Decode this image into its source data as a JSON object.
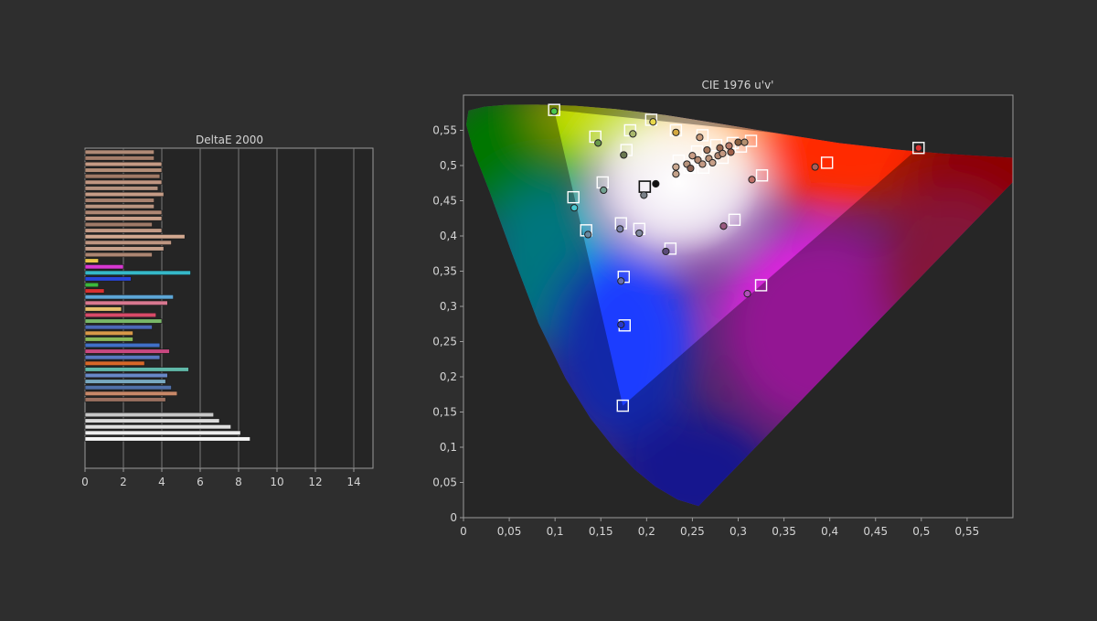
{
  "chart_data": [
    {
      "type": "bar",
      "orientation": "horizontal",
      "title": "DeltaE 2000",
      "xlabel": "",
      "ylabel": "",
      "xlim": [
        0,
        15
      ],
      "xticks": [
        "0",
        "2",
        "4",
        "6",
        "8",
        "10",
        "12",
        "14"
      ],
      "grid": true,
      "values": [
        3.6,
        3.6,
        4.0,
        4.0,
        3.9,
        4.0,
        3.8,
        4.1,
        3.6,
        3.6,
        4.0,
        4.0,
        3.5,
        4.0,
        5.2,
        4.5,
        4.1,
        3.5,
        0.7,
        2.0,
        5.5,
        2.4,
        0.7,
        1.0,
        4.6,
        4.3,
        1.9,
        3.7,
        4.0,
        3.5,
        2.5,
        2.5,
        3.9,
        4.4,
        3.9,
        3.1,
        5.4,
        4.3,
        4.2,
        4.5,
        4.8,
        4.2,
        6.7,
        7.0,
        7.6,
        8.1,
        8.6
      ],
      "colors": [
        "#b08a76",
        "#a47d6a",
        "#c49a84",
        "#b48e78",
        "#a07a66",
        "#c09682",
        "#b4917e",
        "#c59c86",
        "#a88270",
        "#b99480",
        "#ae8774",
        "#caa08a",
        "#9f7a68",
        "#c29a85",
        "#d2a890",
        "#bd9581",
        "#c6a08c",
        "#ad8672",
        "#e8c64a",
        "#d838d2",
        "#35b8c8",
        "#2845d8",
        "#3cb83c",
        "#d83030",
        "#5da6d6",
        "#d87890",
        "#e6c06c",
        "#d84a68",
        "#78b868",
        "#4c68b8",
        "#d89848",
        "#88b858",
        "#4070c8",
        "#c84880",
        "#5878c0",
        "#d86828",
        "#60b8a8",
        "#6888c8",
        "#78a8c0",
        "#5070a8",
        "#c88868",
        "#9a7060",
        "#c8c8c8",
        "#dadada",
        "#e0e0e0",
        "#ececec",
        "#f6f6f6"
      ]
    },
    {
      "type": "scatter",
      "title": "CIE 1976 u'v'",
      "xlabel": "",
      "ylabel": "",
      "xlim": [
        0,
        0.6
      ],
      "ylim": [
        0,
        0.6
      ],
      "xticks": [
        "0",
        "0,05",
        "0,1",
        "0,15",
        "0,2",
        "0,25",
        "0,3",
        "0,35",
        "0,4",
        "0,45",
        "0,5",
        "0,55"
      ],
      "yticks": [
        "0",
        "0,05",
        "0,1",
        "0,15",
        "0,2",
        "0,25",
        "0,3",
        "0,35",
        "0,4",
        "0,45",
        "0,5",
        "0,55"
      ],
      "grid": false,
      "gamut_triangle": {
        "red": [
          0.497,
          0.525
        ],
        "green": [
          0.099,
          0.579
        ],
        "blue": [
          0.174,
          0.159
        ]
      },
      "targets": [
        {
          "u": 0.099,
          "v": 0.579
        },
        {
          "u": 0.205,
          "v": 0.565
        },
        {
          "u": 0.144,
          "v": 0.541
        },
        {
          "u": 0.182,
          "v": 0.55
        },
        {
          "u": 0.232,
          "v": 0.55
        },
        {
          "u": 0.178,
          "v": 0.522
        },
        {
          "u": 0.261,
          "v": 0.543
        },
        {
          "u": 0.294,
          "v": 0.532
        },
        {
          "u": 0.314,
          "v": 0.535
        },
        {
          "u": 0.497,
          "v": 0.525
        },
        {
          "u": 0.397,
          "v": 0.504
        },
        {
          "u": 0.326,
          "v": 0.486
        },
        {
          "u": 0.152,
          "v": 0.476
        },
        {
          "u": 0.198,
          "v": 0.47
        },
        {
          "u": 0.12,
          "v": 0.455
        },
        {
          "u": 0.134,
          "v": 0.408
        },
        {
          "u": 0.172,
          "v": 0.418
        },
        {
          "u": 0.192,
          "v": 0.41
        },
        {
          "u": 0.296,
          "v": 0.423
        },
        {
          "u": 0.226,
          "v": 0.382
        },
        {
          "u": 0.175,
          "v": 0.342
        },
        {
          "u": 0.325,
          "v": 0.33
        },
        {
          "u": 0.176,
          "v": 0.273
        },
        {
          "u": 0.174,
          "v": 0.159
        },
        {
          "u": 0.235,
          "v": 0.507
        },
        {
          "u": 0.255,
          "v": 0.52
        },
        {
          "u": 0.262,
          "v": 0.497
        },
        {
          "u": 0.276,
          "v": 0.529
        },
        {
          "u": 0.283,
          "v": 0.511
        },
        {
          "u": 0.247,
          "v": 0.497
        },
        {
          "u": 0.303,
          "v": 0.527
        }
      ],
      "measured": [
        {
          "u": 0.099,
          "v": 0.577,
          "color": "#4cc84c"
        },
        {
          "u": 0.207,
          "v": 0.562,
          "color": "#e8d84c"
        },
        {
          "u": 0.147,
          "v": 0.532,
          "color": "#6a9a4a"
        },
        {
          "u": 0.185,
          "v": 0.545,
          "color": "#a8b86c"
        },
        {
          "u": 0.232,
          "v": 0.547,
          "color": "#d4a840"
        },
        {
          "u": 0.175,
          "v": 0.515,
          "color": "#6a7850"
        },
        {
          "u": 0.258,
          "v": 0.54,
          "color": "#c89a7a"
        },
        {
          "u": 0.29,
          "v": 0.528,
          "color": "#b87a68"
        },
        {
          "u": 0.307,
          "v": 0.533,
          "color": "#b49070"
        },
        {
          "u": 0.497,
          "v": 0.525,
          "color": "#d83030"
        },
        {
          "u": 0.384,
          "v": 0.498,
          "color": "#a8605a"
        },
        {
          "u": 0.315,
          "v": 0.48,
          "color": "#c07068"
        },
        {
          "u": 0.153,
          "v": 0.465,
          "color": "#70a090"
        },
        {
          "u": 0.21,
          "v": 0.474,
          "color": "#111111"
        },
        {
          "u": 0.197,
          "v": 0.458,
          "color": "#7a8088"
        },
        {
          "u": 0.121,
          "v": 0.44,
          "color": "#48c8d0"
        },
        {
          "u": 0.136,
          "v": 0.402,
          "color": "#6888a0"
        },
        {
          "u": 0.171,
          "v": 0.41,
          "color": "#7a80a8"
        },
        {
          "u": 0.192,
          "v": 0.404,
          "color": "#8088a0"
        },
        {
          "u": 0.284,
          "v": 0.414,
          "color": "#9a5a80"
        },
        {
          "u": 0.221,
          "v": 0.378,
          "color": "#5a4a78"
        },
        {
          "u": 0.172,
          "v": 0.336,
          "color": "#6870b0"
        },
        {
          "u": 0.31,
          "v": 0.318,
          "color": "#b050b8"
        },
        {
          "u": 0.172,
          "v": 0.274,
          "color": "#2838c8"
        },
        {
          "u": 0.232,
          "v": 0.498,
          "color": "#caa890"
        },
        {
          "u": 0.232,
          "v": 0.488,
          "color": "#c4a28a"
        },
        {
          "u": 0.244,
          "v": 0.502,
          "color": "#b8947c"
        },
        {
          "u": 0.248,
          "v": 0.496,
          "color": "#8a6050"
        },
        {
          "u": 0.25,
          "v": 0.514,
          "color": "#c89c84"
        },
        {
          "u": 0.256,
          "v": 0.508,
          "color": "#b48870"
        },
        {
          "u": 0.261,
          "v": 0.502,
          "color": "#c49a84"
        },
        {
          "u": 0.266,
          "v": 0.522,
          "color": "#a8785c"
        },
        {
          "u": 0.268,
          "v": 0.51,
          "color": "#bc9278"
        },
        {
          "u": 0.272,
          "v": 0.504,
          "color": "#c8a088"
        },
        {
          "u": 0.28,
          "v": 0.525,
          "color": "#9a6850"
        },
        {
          "u": 0.278,
          "v": 0.514,
          "color": "#b08670"
        },
        {
          "u": 0.292,
          "v": 0.519,
          "color": "#a06048"
        },
        {
          "u": 0.3,
          "v": 0.533,
          "color": "#8a6040"
        },
        {
          "u": 0.283,
          "v": 0.517,
          "color": "#c49880"
        }
      ]
    }
  ]
}
